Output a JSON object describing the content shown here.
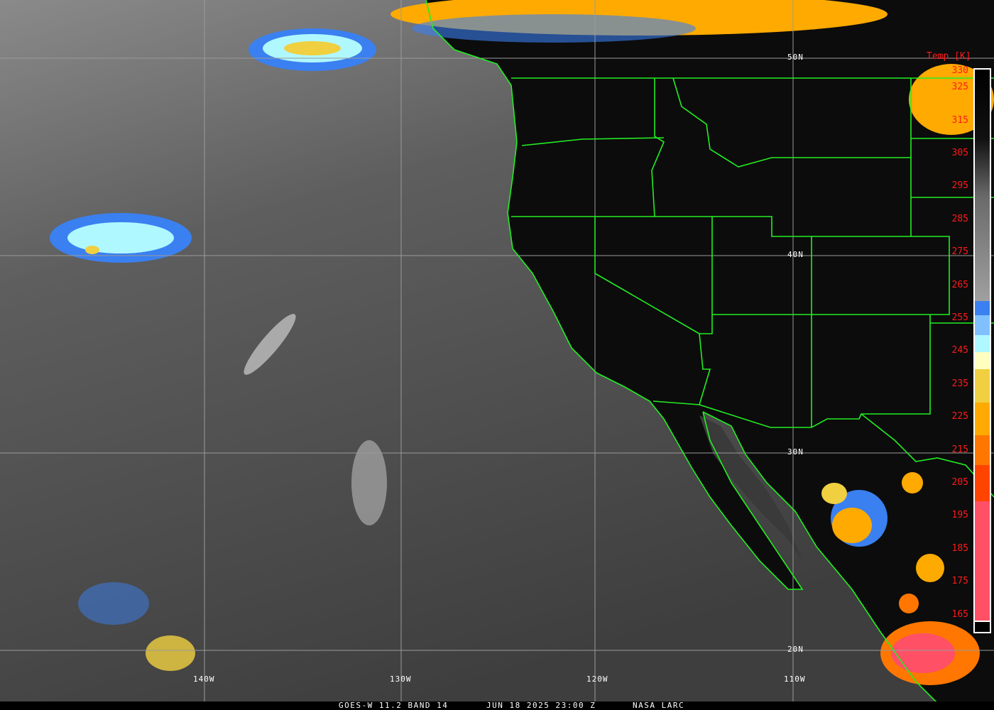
{
  "caption": {
    "satellite": "GOES-W 11.2 BAND 14",
    "datetime": "JUN 18 2025 23:00 Z",
    "credit": "NASA LARC"
  },
  "colorbar": {
    "title": "Temp [K]",
    "ticks": [
      "330",
      "325",
      "315",
      "305",
      "295",
      "285",
      "275",
      "265",
      "255",
      "245",
      "235",
      "225",
      "215",
      "205",
      "195",
      "185",
      "175",
      "165"
    ],
    "range_k": [
      163,
      331
    ],
    "colors": {
      "warm": "#000000",
      "mid": "#9a9a9a",
      "blue": "#3a80f0",
      "light_blue": "#80c0ff",
      "cyan": "#b0f8ff",
      "pale_yellow": "#ffffc0",
      "yellow": "#f0d040",
      "orange": "#ffaa00",
      "dark_orange": "#ff7700",
      "red_orange": "#ff4400",
      "pink": "#ff5066"
    }
  },
  "grid": {
    "lat_labels": [
      "50N",
      "40N",
      "30N",
      "20N"
    ],
    "lon_labels": [
      "140W",
      "130W",
      "120W",
      "110W"
    ]
  },
  "colors": {
    "borders": "#22ee22",
    "grid": "#9a9a9a",
    "land": "#0a0a0a",
    "ocean": "#4a4a4a"
  }
}
